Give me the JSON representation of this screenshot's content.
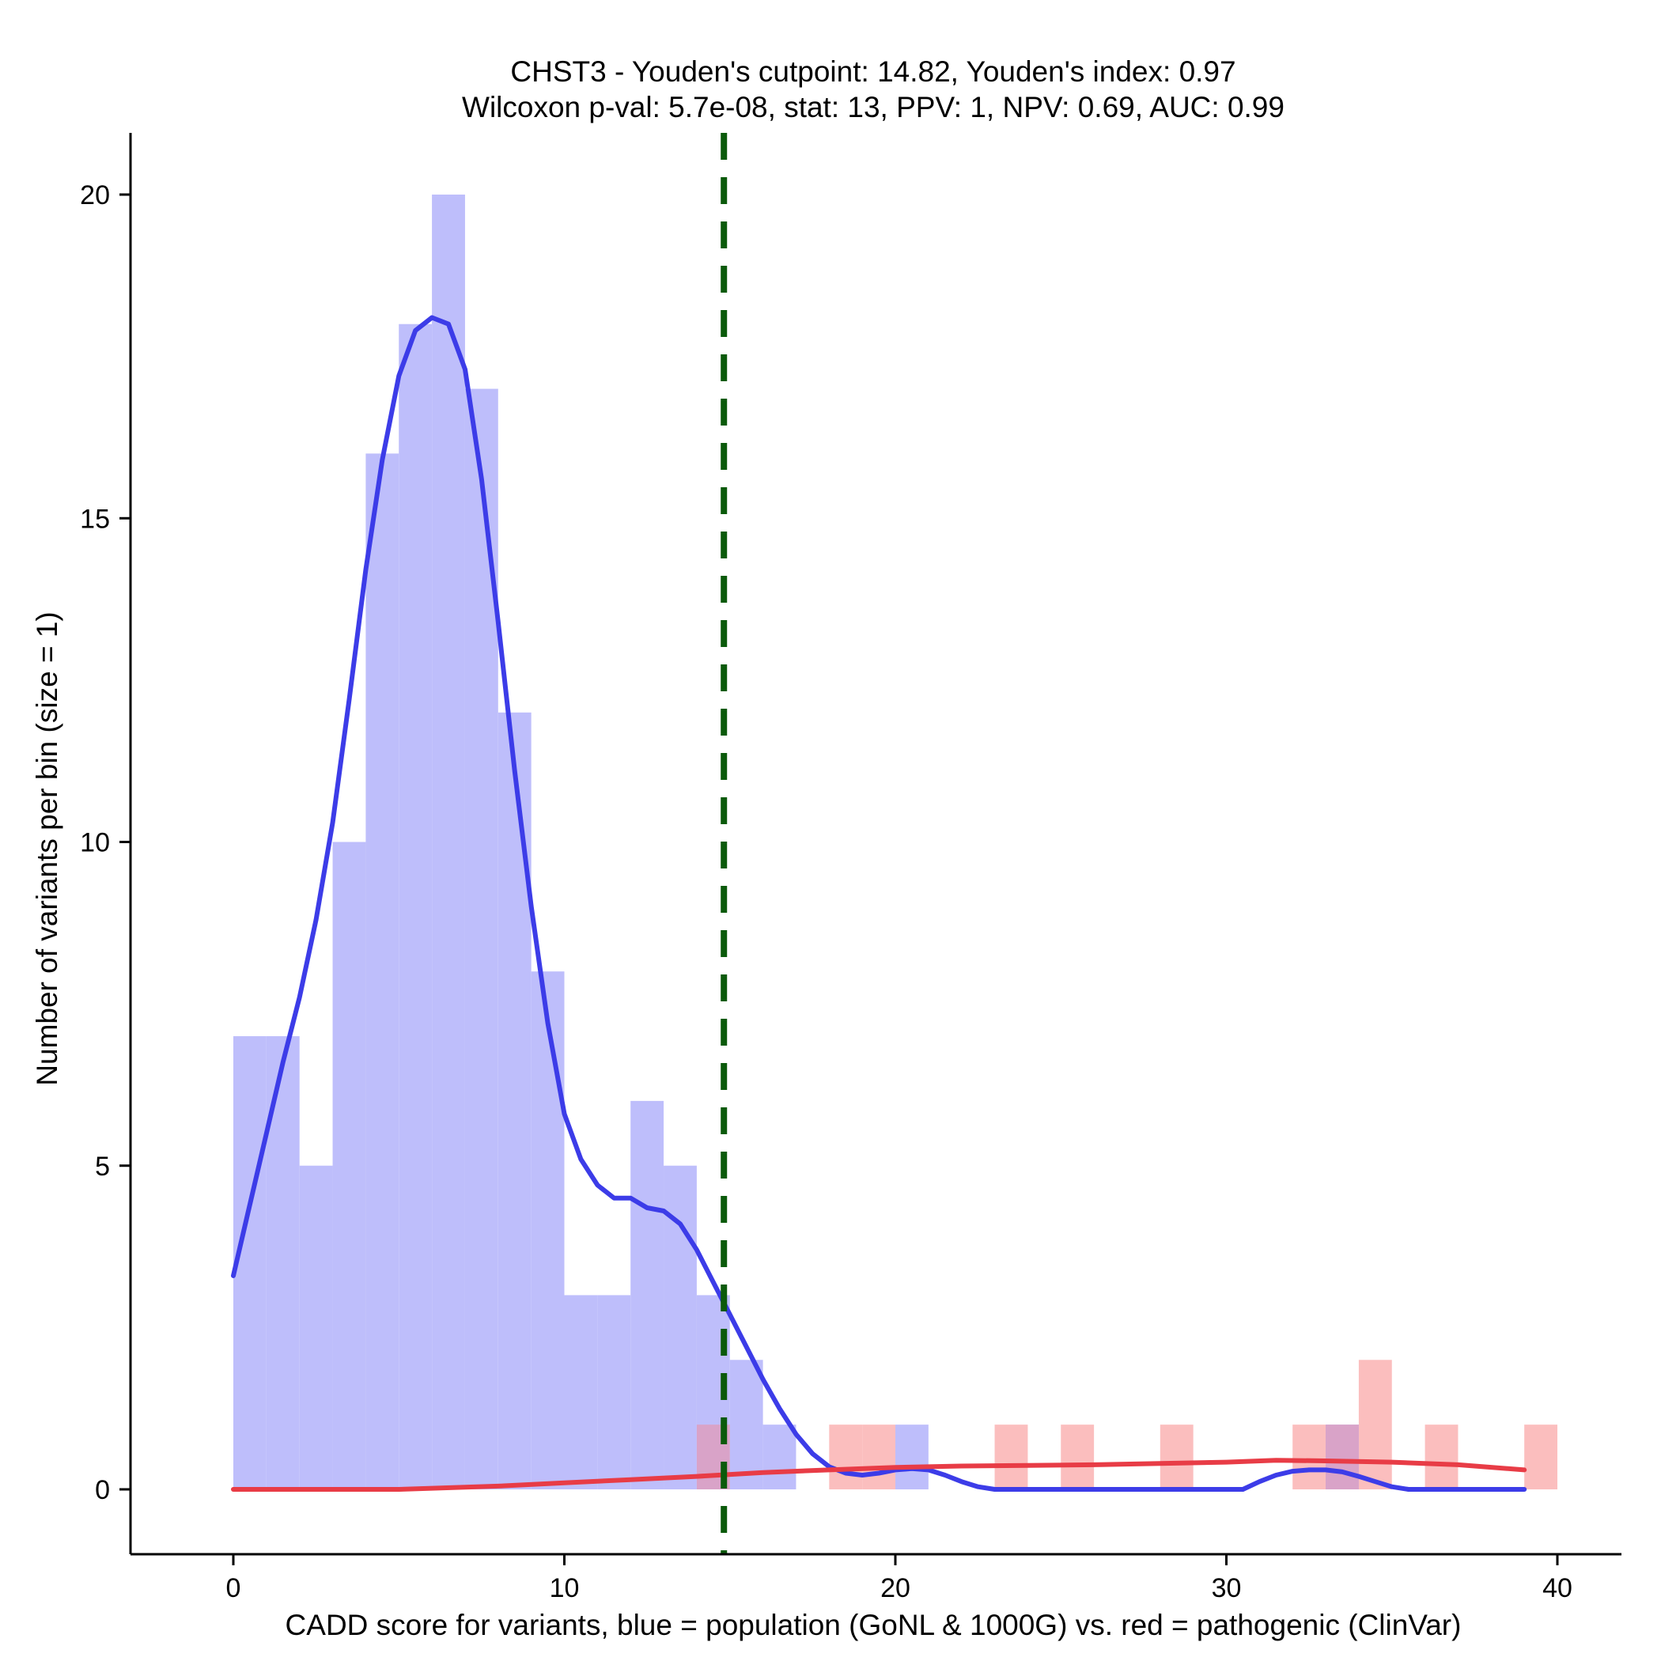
{
  "chart_data": {
    "type": "histogram",
    "title_line1": "CHST3 - Youden's cutpoint: 14.82, Youden's index: 0.97",
    "title_line2": "Wilcoxon p-val: 5.7e-08, stat: 13, PPV: 1, NPV: 0.69, AUC: 0.99",
    "xlabel": "CADD score for variants, blue = population (GoNL & 1000G) vs. red = pathogenic (ClinVar)",
    "ylabel": "Number of variants per bin (size = 1)",
    "xlim": [
      -3.1,
      42
    ],
    "ylim": [
      -1,
      21
    ],
    "xticks": [
      "0",
      "10",
      "20",
      "30",
      "40"
    ],
    "yticks": [
      "0",
      "5",
      "10",
      "15",
      "20"
    ],
    "bin_size": 1,
    "colors": {
      "population_bar": "#bebefb",
      "pathogenic_bar": "#fbbebe",
      "overlap_bar": "#d9a3c8",
      "population_line": "#3c3ce8",
      "pathogenic_line": "#e83c46",
      "cutpoint_line": "#0b5a0b"
    },
    "cutpoint": 14.82,
    "series": [
      {
        "name": "population (GoNL & 1000G)",
        "bins": [
          {
            "start": 0,
            "count": 7
          },
          {
            "start": 1,
            "count": 7
          },
          {
            "start": 2,
            "count": 5
          },
          {
            "start": 3,
            "count": 10
          },
          {
            "start": 4,
            "count": 16
          },
          {
            "start": 5,
            "count": 18
          },
          {
            "start": 6,
            "count": 20
          },
          {
            "start": 7,
            "count": 17
          },
          {
            "start": 8,
            "count": 12
          },
          {
            "start": 9,
            "count": 8
          },
          {
            "start": 10,
            "count": 3
          },
          {
            "start": 11,
            "count": 3
          },
          {
            "start": 12,
            "count": 6
          },
          {
            "start": 13,
            "count": 5
          },
          {
            "start": 14,
            "count": 3
          },
          {
            "start": 15,
            "count": 2
          },
          {
            "start": 16,
            "count": 1
          },
          {
            "start": 20,
            "count": 1
          },
          {
            "start": 33,
            "count": 1
          }
        ],
        "density": [
          [
            0,
            3.3
          ],
          [
            0.5,
            4.4
          ],
          [
            1,
            5.5
          ],
          [
            1.5,
            6.6
          ],
          [
            2,
            7.6
          ],
          [
            2.5,
            8.8
          ],
          [
            3,
            10.3
          ],
          [
            3.5,
            12.2
          ],
          [
            4,
            14.2
          ],
          [
            4.5,
            15.9
          ],
          [
            5,
            17.2
          ],
          [
            5.5,
            17.9
          ],
          [
            6,
            18.1
          ],
          [
            6.5,
            18.0
          ],
          [
            7,
            17.3
          ],
          [
            7.5,
            15.6
          ],
          [
            8,
            13.4
          ],
          [
            8.5,
            11.1
          ],
          [
            9,
            9.0
          ],
          [
            9.5,
            7.2
          ],
          [
            10,
            5.8
          ],
          [
            10.5,
            5.1
          ],
          [
            11,
            4.7
          ],
          [
            11.5,
            4.5
          ],
          [
            12,
            4.5
          ],
          [
            12.5,
            4.35
          ],
          [
            13,
            4.3
          ],
          [
            13.5,
            4.1
          ],
          [
            14,
            3.7
          ],
          [
            14.5,
            3.2
          ],
          [
            15,
            2.7
          ],
          [
            15.5,
            2.2
          ],
          [
            16,
            1.7
          ],
          [
            16.5,
            1.25
          ],
          [
            17,
            0.85
          ],
          [
            17.5,
            0.55
          ],
          [
            18,
            0.35
          ],
          [
            18.5,
            0.25
          ],
          [
            19,
            0.22
          ],
          [
            19.5,
            0.25
          ],
          [
            20,
            0.3
          ],
          [
            20.5,
            0.32
          ],
          [
            21,
            0.3
          ],
          [
            21.5,
            0.22
          ],
          [
            22,
            0.12
          ],
          [
            22.5,
            0.04
          ],
          [
            23,
            0
          ],
          [
            30.5,
            0
          ],
          [
            31,
            0.12
          ],
          [
            31.5,
            0.22
          ],
          [
            32,
            0.28
          ],
          [
            32.5,
            0.3
          ],
          [
            33,
            0.3
          ],
          [
            33.5,
            0.27
          ],
          [
            34,
            0.2
          ],
          [
            34.5,
            0.12
          ],
          [
            35,
            0.04
          ],
          [
            35.5,
            0
          ],
          [
            39,
            0
          ]
        ]
      },
      {
        "name": "pathogenic (ClinVar)",
        "bins": [
          {
            "start": 14,
            "count": 1
          },
          {
            "start": 18,
            "count": 1
          },
          {
            "start": 19,
            "count": 1
          },
          {
            "start": 23,
            "count": 1
          },
          {
            "start": 25,
            "count": 1
          },
          {
            "start": 28,
            "count": 1
          },
          {
            "start": 32,
            "count": 1
          },
          {
            "start": 33,
            "count": 1
          },
          {
            "start": 34,
            "count": 2
          },
          {
            "start": 36,
            "count": 1
          },
          {
            "start": 39,
            "count": 1
          }
        ],
        "density": [
          [
            0,
            0
          ],
          [
            5,
            0
          ],
          [
            8,
            0.05
          ],
          [
            10,
            0.1
          ],
          [
            12,
            0.15
          ],
          [
            14,
            0.2
          ],
          [
            16,
            0.26
          ],
          [
            18,
            0.3
          ],
          [
            20,
            0.34
          ],
          [
            22,
            0.36
          ],
          [
            24,
            0.37
          ],
          [
            26,
            0.38
          ],
          [
            28,
            0.4
          ],
          [
            30,
            0.42
          ],
          [
            31.5,
            0.45
          ],
          [
            33,
            0.44
          ],
          [
            35,
            0.42
          ],
          [
            37,
            0.38
          ],
          [
            39,
            0.3
          ]
        ]
      }
    ]
  }
}
